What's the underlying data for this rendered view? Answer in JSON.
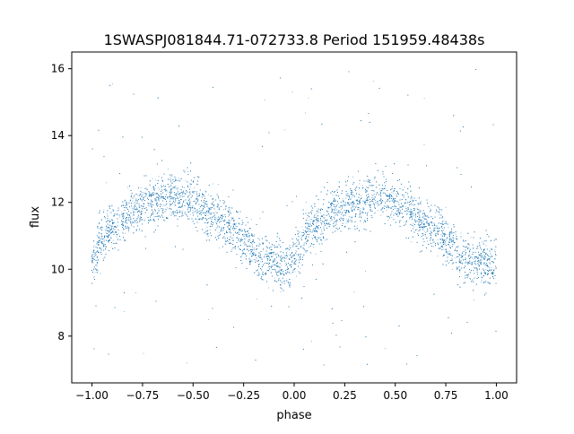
{
  "chart_data": {
    "type": "scatter",
    "title": "1SWASPJ081844.71-072733.8 Period 151959.48438s",
    "xlabel": "phase",
    "ylabel": "flux",
    "xlim": [
      -1.1,
      1.1
    ],
    "ylim": [
      6.6,
      16.5
    ],
    "x_ticks": [
      -1.0,
      -0.75,
      -0.5,
      -0.25,
      0.0,
      0.25,
      0.5,
      0.75,
      1.0
    ],
    "x_tick_labels": [
      "−1.00",
      "−0.75",
      "−0.50",
      "−0.25",
      "0.00",
      "0.25",
      "0.50",
      "0.75",
      "1.00"
    ],
    "y_ticks": [
      8,
      10,
      12,
      14,
      16
    ],
    "y_tick_labels": [
      "8",
      "10",
      "12",
      "14",
      "16"
    ],
    "grid": false,
    "marker_color": "#1f77b4",
    "series": [
      {
        "name": "",
        "x_range": [
          -1.0,
          1.0
        ],
        "phase_fold_period": 1.0,
        "trend": {
          "x": [
            0.0,
            0.05,
            0.1,
            0.15,
            0.2,
            0.25,
            0.3,
            0.35,
            0.4,
            0.45,
            0.5,
            0.55,
            0.6,
            0.65,
            0.7,
            0.75,
            0.8,
            0.82,
            0.85,
            0.9,
            0.95,
            1.0
          ],
          "flux": [
            10.1,
            10.9,
            11.3,
            11.5,
            11.7,
            11.9,
            12.0,
            12.1,
            12.2,
            12.1,
            12.0,
            11.8,
            11.6,
            11.4,
            11.2,
            10.9,
            10.6,
            10.3,
            10.3,
            10.2,
            10.2,
            10.2
          ]
        },
        "scatter_std": 0.35,
        "num_points": 16000,
        "outlier_range": [
          7.0,
          16.0
        ]
      }
    ]
  }
}
